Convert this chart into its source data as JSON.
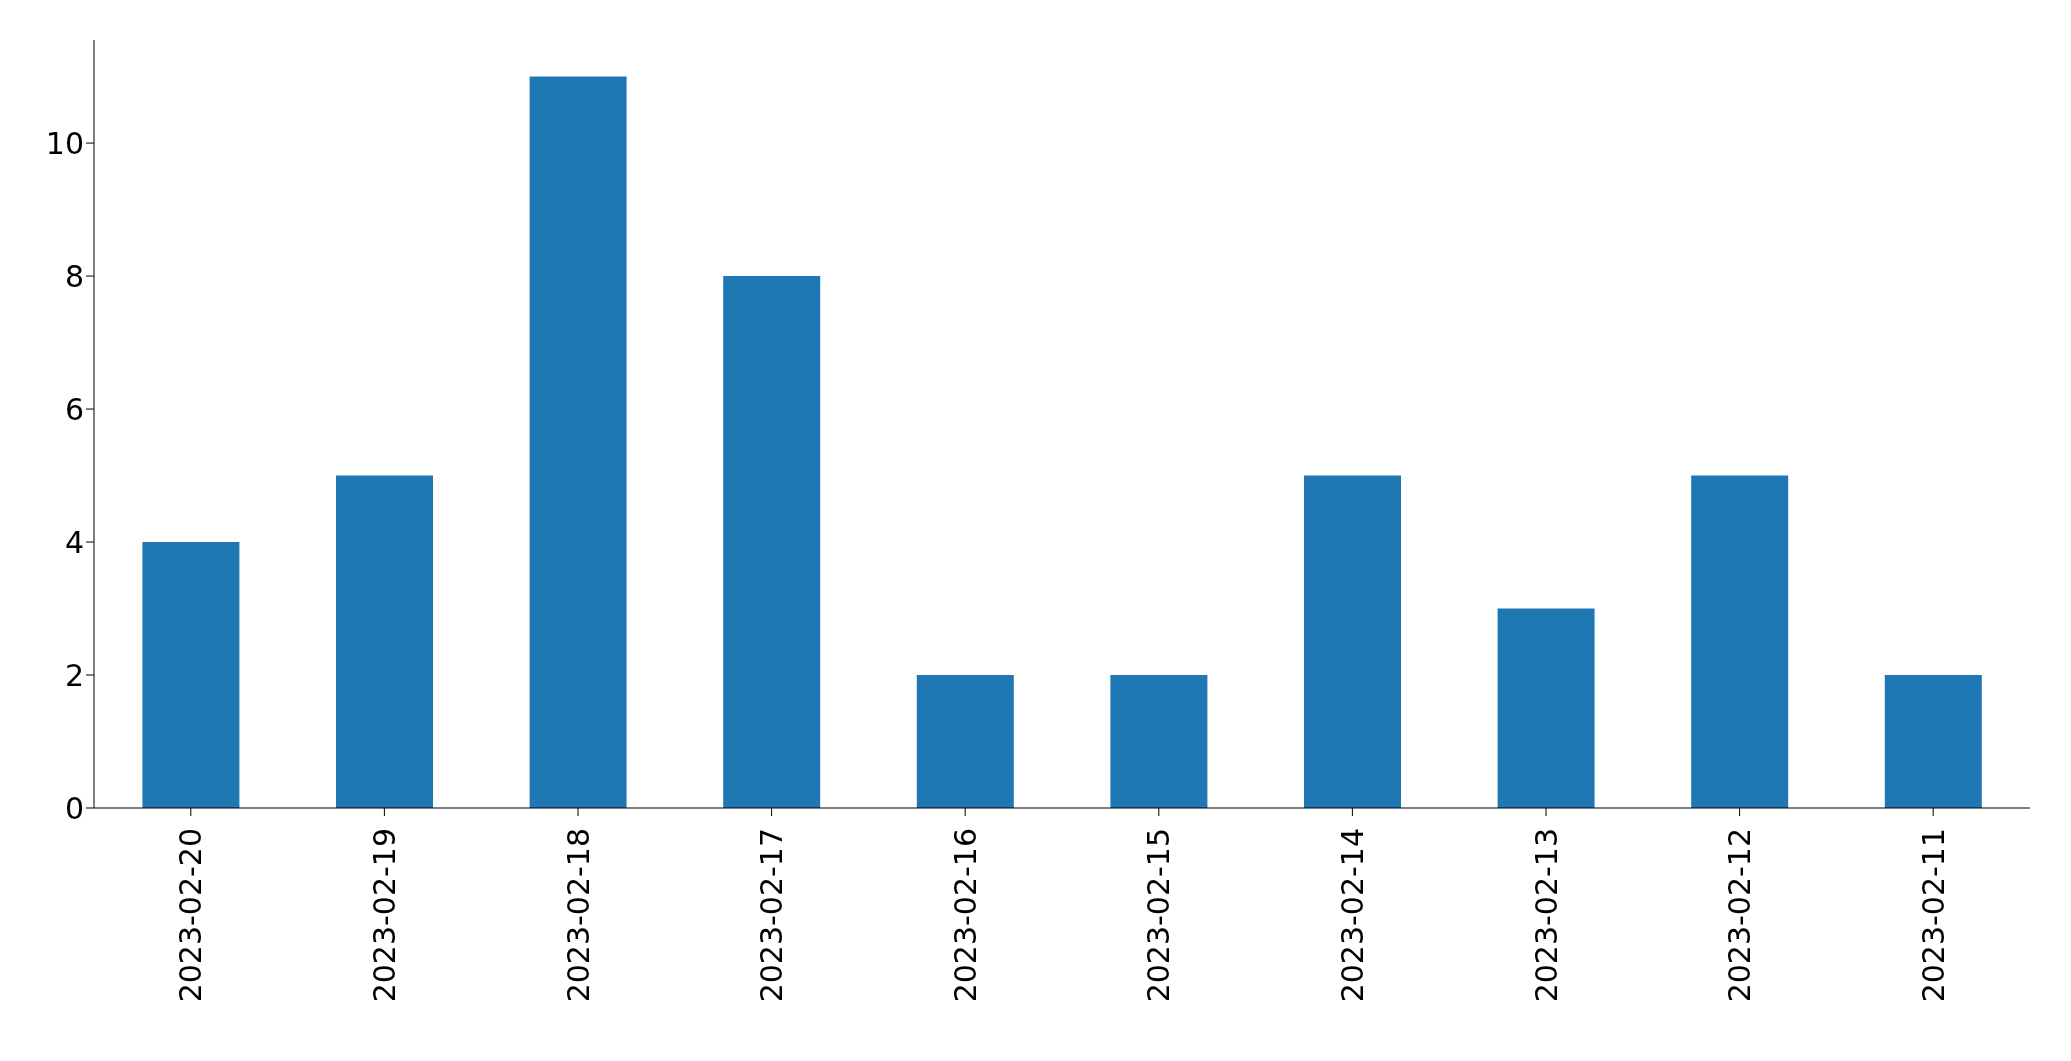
{
  "chart_data": {
    "type": "bar",
    "categories": [
      "2023-02-20",
      "2023-02-19",
      "2023-02-18",
      "2023-02-17",
      "2023-02-16",
      "2023-02-15",
      "2023-02-14",
      "2023-02-13",
      "2023-02-12",
      "2023-02-11"
    ],
    "values": [
      4,
      5,
      11,
      8,
      2,
      2,
      5,
      3,
      5,
      2
    ],
    "color": "#1f77b4",
    "ylim": [
      0,
      11.55
    ],
    "yticks": [
      0,
      2,
      4,
      6,
      8,
      10
    ],
    "grid": false,
    "legend": false
  }
}
